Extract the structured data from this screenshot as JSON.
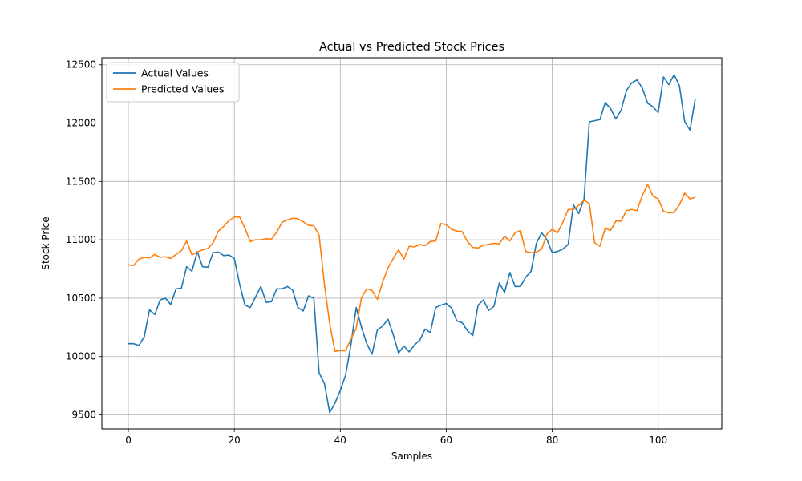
{
  "chart_data": {
    "type": "line",
    "title": "Actual vs Predicted Stock Prices",
    "xlabel": "Samples",
    "ylabel": "Stock Price",
    "xlim": [
      -5,
      112
    ],
    "ylim": [
      9380,
      12560
    ],
    "xticks": [
      0,
      20,
      40,
      60,
      80,
      100
    ],
    "yticks": [
      9500,
      10000,
      10500,
      11000,
      11500,
      12000,
      12500
    ],
    "grid": true,
    "legend_position": "top-left",
    "series": [
      {
        "name": "Actual Values",
        "color": "#1f77b4",
        "x_start": 0,
        "values": [
          10110,
          10110,
          10095,
          10170,
          10400,
          10360,
          10485,
          10500,
          10445,
          10580,
          10585,
          10770,
          10730,
          10900,
          10770,
          10765,
          10890,
          10895,
          10865,
          10870,
          10840,
          10620,
          10440,
          10420,
          10510,
          10600,
          10465,
          10470,
          10580,
          10580,
          10600,
          10570,
          10420,
          10390,
          10520,
          10500,
          9860,
          9770,
          9520,
          9600,
          9710,
          9840,
          10100,
          10420,
          10250,
          10110,
          10020,
          10230,
          10260,
          10320,
          10185,
          10030,
          10090,
          10040,
          10100,
          10140,
          10235,
          10205,
          10420,
          10440,
          10455,
          10415,
          10305,
          10290,
          10220,
          10180,
          10440,
          10485,
          10395,
          10430,
          10630,
          10550,
          10720,
          10600,
          10600,
          10680,
          10730,
          10970,
          11060,
          11000,
          10890,
          10900,
          10920,
          10960,
          11300,
          11225,
          11350,
          12010,
          12020,
          12030,
          12175,
          12125,
          12035,
          12110,
          12280,
          12345,
          12370,
          12300,
          12170,
          12140,
          12090,
          12395,
          12330,
          12415,
          12320,
          12010,
          11940,
          12210
        ]
      },
      {
        "name": "Predicted Values",
        "color": "#ff7f0e",
        "x_start": 0,
        "values": [
          10785,
          10780,
          10835,
          10850,
          10845,
          10875,
          10850,
          10855,
          10840,
          10875,
          10905,
          10990,
          10870,
          10895,
          10915,
          10925,
          10975,
          11075,
          11115,
          11165,
          11195,
          11195,
          11100,
          10985,
          11000,
          11000,
          11010,
          11005,
          11065,
          11150,
          11170,
          11185,
          11180,
          11155,
          11125,
          11120,
          11040,
          10620,
          10280,
          10045,
          10050,
          10050,
          10150,
          10240,
          10505,
          10580,
          10565,
          10490,
          10640,
          10760,
          10840,
          10915,
          10835,
          10945,
          10940,
          10960,
          10950,
          10985,
          10990,
          11140,
          11130,
          11090,
          11075,
          11070,
          10985,
          10935,
          10930,
          10955,
          10960,
          10970,
          10965,
          11030,
          10990,
          11060,
          11080,
          10900,
          10890,
          10895,
          10920,
          11050,
          11090,
          11060,
          11150,
          11260,
          11260,
          11295,
          11340,
          11310,
          10975,
          10945,
          11100,
          11080,
          11160,
          11160,
          11250,
          11260,
          11250,
          11380,
          11475,
          11375,
          11350,
          11245,
          11230,
          11235,
          11300,
          11400,
          11350,
          11365
        ]
      }
    ]
  }
}
